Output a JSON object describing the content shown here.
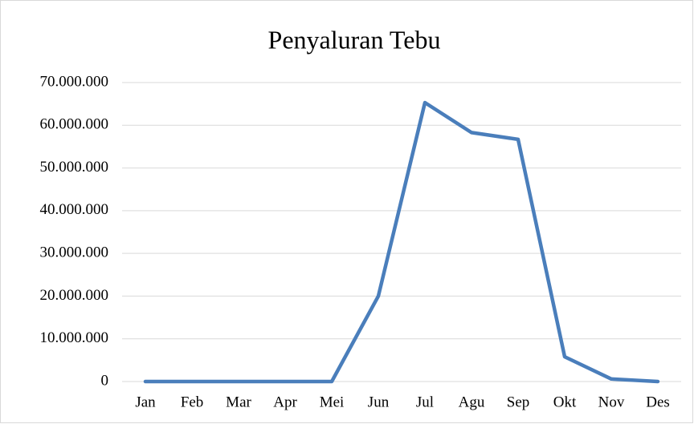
{
  "chart_data": {
    "type": "line",
    "title": "Penyaluran Tebu",
    "categories": [
      "Jan",
      "Feb",
      "Mar",
      "Apr",
      "Mei",
      "Jun",
      "Jul",
      "Agu",
      "Sep",
      "Okt",
      "Nov",
      "Des"
    ],
    "series": [
      {
        "color": "#4a7ebb",
        "values": [
          0,
          0,
          0,
          0,
          0,
          20000000,
          65300000,
          58300000,
          56700000,
          5800000,
          600000,
          0
        ]
      }
    ],
    "ylim": [
      0,
      70000000
    ],
    "yticks": [
      0,
      {
        "value": 10000000,
        "label": "10.000.000"
      },
      {
        "value": 20000000,
        "label": "20.000.000"
      },
      {
        "value": 30000000,
        "label": "30.000.000"
      },
      {
        "value": 40000000,
        "label": "40.000.000"
      },
      {
        "value": 50000000,
        "label": "50.000.000"
      },
      {
        "value": 60000000,
        "label": "60.000.000"
      },
      {
        "value": 70000000,
        "label": "70.000.000"
      }
    ],
    "grid": true
  }
}
